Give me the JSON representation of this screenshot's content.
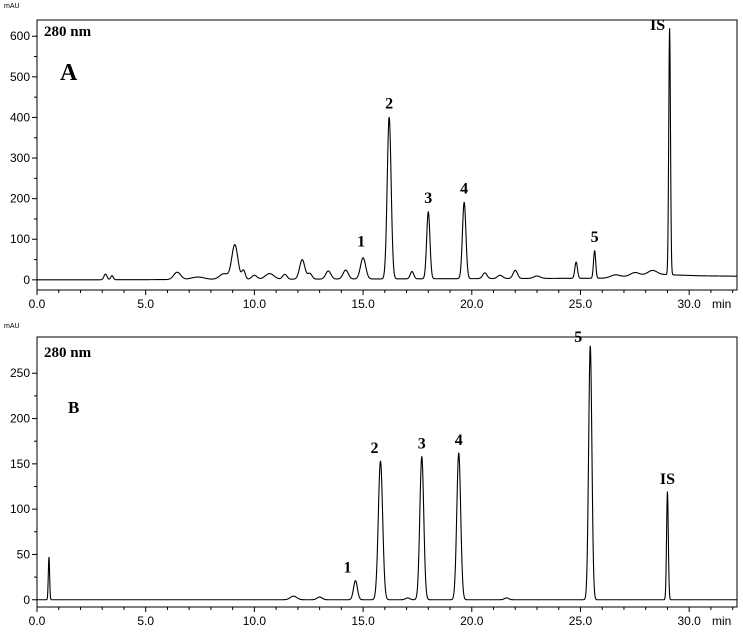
{
  "chart_data": [
    {
      "type": "line",
      "panel_letter": "A",
      "unit": "mAU",
      "wavelength": "280 nm",
      "x_unit": "min",
      "xlim": [
        0,
        32.2
      ],
      "ylim": [
        -25,
        640
      ],
      "y_ticks": [
        0,
        100,
        200,
        300,
        400,
        500,
        600
      ],
      "x_ticks": [
        0,
        5,
        10,
        15,
        20,
        25,
        30
      ],
      "y_tick_labels": [
        "0",
        "100",
        "200",
        "300",
        "400",
        "500",
        "600"
      ],
      "x_tick_labels": [
        "0.0",
        "5.0",
        "10.0",
        "15.0",
        "20.0",
        "25.0",
        "30.0"
      ],
      "peaks": [
        {
          "t": 3.15,
          "h": 14,
          "w": 0.07
        },
        {
          "t": 3.45,
          "h": 10,
          "w": 0.06
        },
        {
          "t": 6.45,
          "h": 18,
          "w": 0.16
        },
        {
          "t": 7.4,
          "h": 6,
          "w": 0.3
        },
        {
          "t": 8.6,
          "h": 14,
          "w": 0.2
        },
        {
          "t": 9.1,
          "h": 85,
          "w": 0.14
        },
        {
          "t": 9.5,
          "h": 22,
          "w": 0.08
        },
        {
          "t": 10.0,
          "h": 10,
          "w": 0.12
        },
        {
          "t": 10.7,
          "h": 14,
          "w": 0.2
        },
        {
          "t": 11.4,
          "h": 12,
          "w": 0.1
        },
        {
          "t": 12.2,
          "h": 48,
          "w": 0.12
        },
        {
          "t": 12.55,
          "h": 14,
          "w": 0.1
        },
        {
          "t": 13.4,
          "h": 20,
          "w": 0.12
        },
        {
          "t": 14.2,
          "h": 22,
          "w": 0.12
        },
        {
          "t": 15.0,
          "h": 52,
          "w": 0.12
        },
        {
          "t": 16.2,
          "h": 398,
          "w": 0.09
        },
        {
          "t": 17.25,
          "h": 18,
          "w": 0.08
        },
        {
          "t": 18.0,
          "h": 165,
          "w": 0.075
        },
        {
          "t": 19.65,
          "h": 188,
          "w": 0.08
        },
        {
          "t": 20.6,
          "h": 14,
          "w": 0.1
        },
        {
          "t": 21.3,
          "h": 8,
          "w": 0.12
        },
        {
          "t": 22.0,
          "h": 20,
          "w": 0.1
        },
        {
          "t": 23.0,
          "h": 6,
          "w": 0.15
        },
        {
          "t": 24.8,
          "h": 40,
          "w": 0.06
        },
        {
          "t": 25.65,
          "h": 68,
          "w": 0.05
        },
        {
          "t": 26.6,
          "h": 6,
          "w": 0.2
        },
        {
          "t": 27.5,
          "h": 8,
          "w": 0.2
        },
        {
          "t": 28.3,
          "h": 10,
          "w": 0.2
        },
        {
          "t": 29.1,
          "h": 606,
          "w": 0.04
        }
      ],
      "baseline": [
        [
          0,
          0
        ],
        [
          2,
          0
        ],
        [
          26,
          4
        ],
        [
          28.5,
          14
        ],
        [
          29.4,
          12
        ],
        [
          30.5,
          10
        ],
        [
          32.2,
          9
        ]
      ],
      "annotations": [
        {
          "label": "1",
          "t": 15.0,
          "h": 52
        },
        {
          "label": "2",
          "t": 16.2,
          "h": 398
        },
        {
          "label": "3",
          "t": 18.0,
          "h": 165
        },
        {
          "label": "4",
          "t": 19.65,
          "h": 188
        },
        {
          "label": "5",
          "t": 25.65,
          "h": 68
        },
        {
          "label": "IS",
          "t": 29.1,
          "h": 606
        }
      ]
    },
    {
      "type": "line",
      "panel_letter": "B",
      "unit": "mAU",
      "wavelength": "280 nm",
      "x_unit": "min",
      "xlim": [
        0,
        32.2
      ],
      "ylim": [
        -8,
        290
      ],
      "y_ticks": [
        0,
        50,
        100,
        150,
        200,
        250
      ],
      "x_ticks": [
        0,
        5,
        10,
        15,
        20,
        25,
        30
      ],
      "y_tick_labels": [
        "0",
        "50",
        "100",
        "150",
        "200",
        "250"
      ],
      "x_tick_labels": [
        "0.0",
        "5.0",
        "10.0",
        "15.0",
        "20.0",
        "25.0",
        "30.0"
      ],
      "peaks": [
        {
          "t": 0.55,
          "h": 47,
          "w": 0.03
        },
        {
          "t": 11.8,
          "h": 4,
          "w": 0.15
        },
        {
          "t": 13.0,
          "h": 3,
          "w": 0.12
        },
        {
          "t": 14.65,
          "h": 21,
          "w": 0.09
        },
        {
          "t": 15.8,
          "h": 153,
          "w": 0.1
        },
        {
          "t": 17.05,
          "h": 2,
          "w": 0.1
        },
        {
          "t": 17.7,
          "h": 158,
          "w": 0.09
        },
        {
          "t": 19.4,
          "h": 162,
          "w": 0.09
        },
        {
          "t": 21.6,
          "h": 2,
          "w": 0.1
        },
        {
          "t": 25.45,
          "h": 280,
          "w": 0.075
        },
        {
          "t": 29.0,
          "h": 119,
          "w": 0.04
        }
      ],
      "baseline": [
        [
          0,
          0
        ],
        [
          32.2,
          0
        ]
      ],
      "annotations": [
        {
          "label": "1",
          "t": 14.65,
          "h": 21
        },
        {
          "label": "2",
          "t": 15.8,
          "h": 153
        },
        {
          "label": "3",
          "t": 17.7,
          "h": 158
        },
        {
          "label": "4",
          "t": 19.4,
          "h": 162
        },
        {
          "label": "5",
          "t": 25.45,
          "h": 280
        },
        {
          "label": "IS",
          "t": 29.0,
          "h": 119
        }
      ]
    }
  ]
}
